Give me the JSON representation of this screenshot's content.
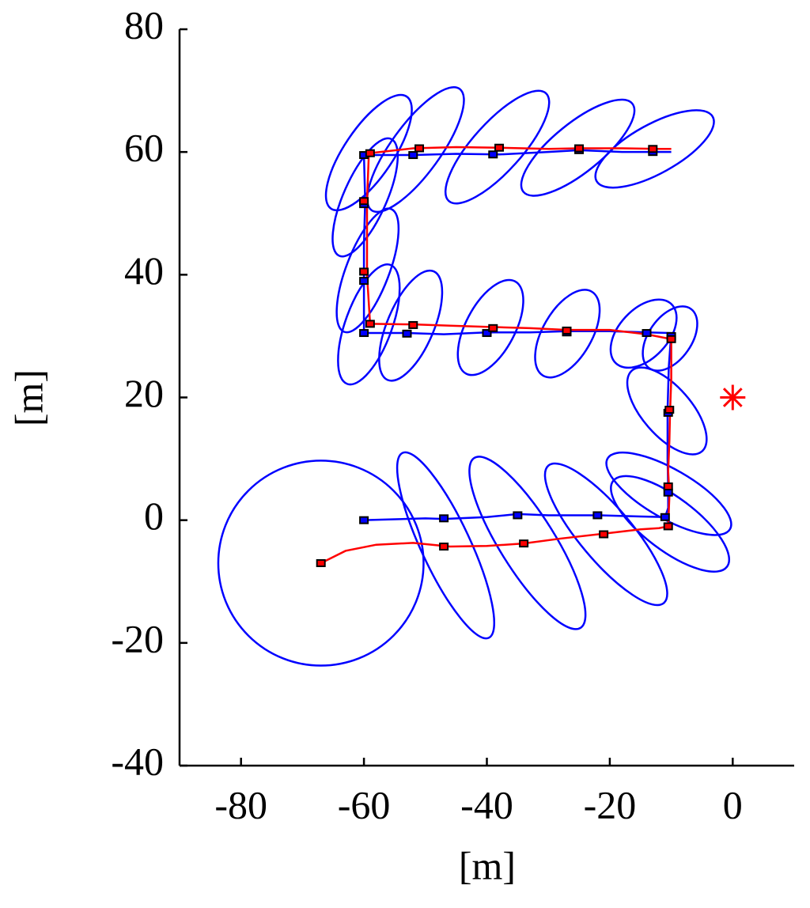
{
  "chart_data": {
    "type": "line",
    "xlabel": "[m]",
    "ylabel": "[m]",
    "xlim": [
      -90,
      10
    ],
    "ylim": [
      -40,
      80
    ],
    "xticks": [
      -80,
      -60,
      -40,
      -20,
      0
    ],
    "yticks": [
      -40,
      -20,
      0,
      20,
      40,
      60,
      80
    ],
    "grid": false,
    "series": [
      {
        "color": "#0000ff",
        "marker": "none",
        "x": [
          -60,
          -50,
          -47,
          -40,
          -35,
          -30,
          -22,
          -15,
          -11,
          -10.5,
          -10.5,
          -10.6,
          -10.6,
          -10.4,
          -10,
          -14,
          -20,
          -27,
          -33,
          -40,
          -47,
          -53,
          -60,
          -60,
          -60,
          -59.8,
          -60,
          -52,
          -45,
          -38,
          -30,
          -25,
          -18,
          -12,
          -10
        ],
        "y": [
          0,
          0.3,
          0.2,
          0.5,
          1,
          0.8,
          0.8,
          0.6,
          0.5,
          2,
          5,
          10,
          18,
          25,
          30.5,
          30.6,
          30.8,
          30.8,
          30.6,
          30.6,
          30.3,
          30.5,
          30.5,
          38,
          45,
          52,
          59.5,
          59.5,
          59.7,
          59.6,
          60,
          60.3,
          60,
          60,
          60
        ]
      },
      {
        "color": "#ff0000",
        "marker": "none",
        "x": [
          -67,
          -63,
          -58,
          -52,
          -46,
          -40,
          -34,
          -28,
          -21,
          -15,
          -12,
          -10.5,
          -10.3,
          -10.5,
          -10.3,
          -10.2,
          -10,
          -10,
          -14,
          -20,
          -27,
          -33,
          -40,
          -46,
          -52,
          -59,
          -59.5,
          -59.5,
          -59.2,
          -52,
          -45,
          -38,
          -30,
          -25,
          -18,
          -12,
          -10
        ],
        "y": [
          -7,
          -5,
          -4,
          -3.7,
          -4.3,
          -4.2,
          -3.8,
          -3,
          -2.2,
          -1.5,
          -1.3,
          -1,
          4,
          8,
          13,
          17.5,
          23,
          29.5,
          30.3,
          31,
          31,
          31.3,
          31.5,
          31.7,
          31.9,
          32,
          40,
          52,
          59.8,
          60.6,
          60.8,
          60.7,
          60.5,
          60.6,
          60.6,
          60.5,
          60.5
        ]
      },
      {
        "color": "#0000ff",
        "marker": "square",
        "x": [
          -60,
          -47,
          -35,
          -22,
          -11,
          -10.5,
          -10.5,
          -10,
          -14,
          -27,
          -40,
          -53,
          -60,
          -60,
          -60,
          -60,
          -52,
          -39,
          -25,
          -13
        ],
        "y": [
          0,
          0.3,
          0.8,
          0.8,
          0.5,
          4.5,
          17.5,
          30,
          30.5,
          30.6,
          30.5,
          30.4,
          30.5,
          39,
          51.5,
          59.5,
          59.5,
          59.6,
          60.3,
          60
        ]
      },
      {
        "color": "#ff0000",
        "marker": "square",
        "x": [
          -67,
          -47,
          -34,
          -21,
          -10.5,
          -10.5,
          -10.3,
          -10,
          -27,
          -39,
          -52,
          -59,
          -60,
          -60,
          -59,
          -51,
          -38,
          -25,
          -13
        ],
        "y": [
          -7,
          -4.3,
          -3.8,
          -2.3,
          -1,
          5.5,
          18,
          29.5,
          30.9,
          31.3,
          31.8,
          32,
          40.5,
          52,
          59.8,
          60.6,
          60.7,
          60.6,
          60.5
        ]
      },
      {
        "color": "#ff0000",
        "marker": "star",
        "x": [
          0
        ],
        "y": [
          20
        ]
      }
    ],
    "ellipses": {
      "color": "#0000ff",
      "x": [
        -67,
        -46.7,
        -33.4,
        -20.6,
        -10.4,
        -10.2,
        -10.7,
        -14.5,
        -10.2,
        -26.9,
        -39.4,
        -52.4,
        -59.2,
        -59.4,
        -59.8,
        -59.2,
        -51.6,
        -38.3,
        -25.2,
        -12.7
      ],
      "y": [
        -7,
        -4.1,
        -3.7,
        -2.3,
        4.3,
        -0.6,
        17.8,
        30.4,
        29.6,
        30.4,
        31.4,
        31.7,
        31.9,
        40.7,
        52.6,
        59.9,
        60.4,
        60.8,
        60.7,
        60.5
      ],
      "rx": [
        16.7,
        16.6,
        16.3,
        14.6,
        11.5,
        11.6,
        8.7,
        6.6,
        5.9,
        7.9,
        8.5,
        9.6,
        10.3,
        10.7,
        10.4,
        11,
        12.2,
        11.8,
        11.4,
        10.8
      ],
      "ry": [
        16.7,
        4,
        4.5,
        4.3,
        4,
        4.3,
        4,
        4,
        3.5,
        4,
        4,
        3.8,
        3.8,
        3.5,
        3.5,
        4,
        4,
        4,
        4,
        4
      ],
      "angle": [
        0,
        -65,
        -58,
        -50,
        -30,
        -37,
        -49,
        47,
        55,
        60,
        62,
        67,
        70,
        69,
        66,
        56,
        54,
        48,
        39,
        29
      ]
    }
  }
}
